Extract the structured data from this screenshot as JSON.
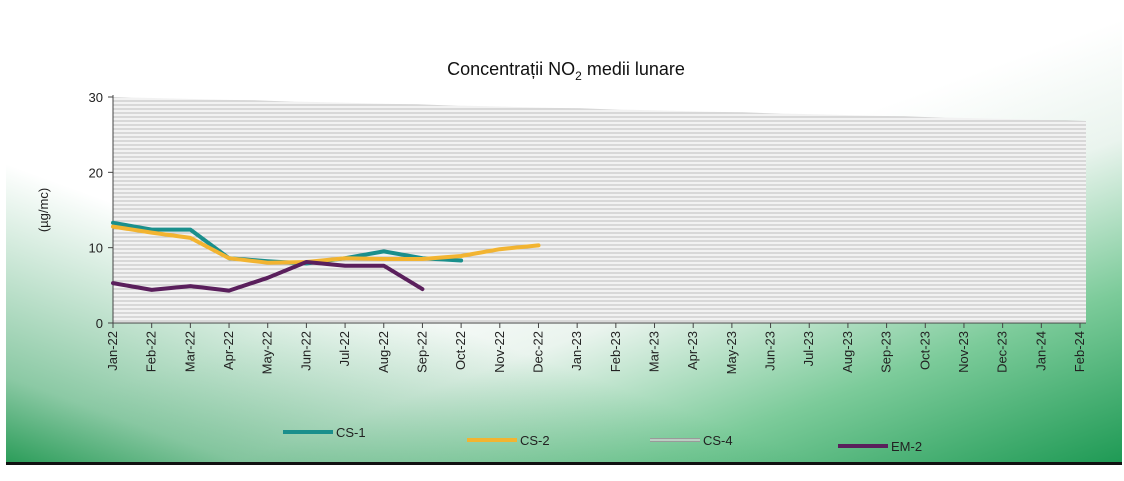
{
  "chart_data": {
    "type": "line",
    "title_main": "Concentrații NO",
    "title_sub": "2",
    "title_rest": " medii lunare",
    "ylabel": "(µg/mc)",
    "xlabel": "",
    "ylim": [
      0,
      30
    ],
    "yticks": [
      0,
      10,
      20,
      30
    ],
    "grid": "horizontal striped background",
    "legend": "bottom",
    "categories": [
      "Jan-22",
      "Feb-22",
      "Mar-22",
      "Apr-22",
      "May-22",
      "Jun-22",
      "Jul-22",
      "Aug-22",
      "Sep-22",
      "Oct-22",
      "Nov-22",
      "Dec-22",
      "Jan-23",
      "Feb-23",
      "Mar-23",
      "Apr-23",
      "May-23",
      "Jun-23",
      "Jul-23",
      "Aug-23",
      "Sep-23",
      "Oct-23",
      "Nov-23",
      "Dec-23",
      "Jan-24",
      "Feb-24"
    ],
    "series": [
      {
        "name": "CS-1",
        "color": "#1a8f8c",
        "values": [
          13.3,
          12.4,
          12.4,
          8.6,
          8.2,
          7.9,
          8.6,
          9.5,
          8.6,
          8.3,
          null,
          null,
          null,
          null,
          null,
          null,
          null,
          null,
          null,
          null,
          null,
          null,
          null,
          null,
          null,
          null
        ]
      },
      {
        "name": "CS-2",
        "color": "#f2b431",
        "values": [
          12.8,
          12.0,
          11.3,
          8.6,
          8.0,
          8.1,
          8.6,
          8.5,
          8.5,
          8.9,
          9.8,
          10.3,
          null,
          null,
          null,
          null,
          null,
          null,
          null,
          null,
          null,
          null,
          null,
          null,
          null,
          null
        ]
      },
      {
        "name": "CS-4",
        "color": "#b3b3b3",
        "values": [
          null,
          null,
          null,
          null,
          null,
          null,
          null,
          null,
          null,
          null,
          null,
          null,
          null,
          null,
          null,
          null,
          null,
          null,
          null,
          null,
          null,
          null,
          null,
          null,
          null,
          null
        ]
      },
      {
        "name": "EM-2",
        "color": "#5a1f5c",
        "values": [
          5.3,
          4.4,
          4.9,
          4.3,
          6.0,
          8.1,
          7.6,
          7.6,
          4.5,
          null,
          null,
          null,
          null,
          null,
          null,
          null,
          null,
          null,
          null,
          null,
          null,
          null,
          null,
          null,
          null,
          null
        ]
      }
    ]
  }
}
